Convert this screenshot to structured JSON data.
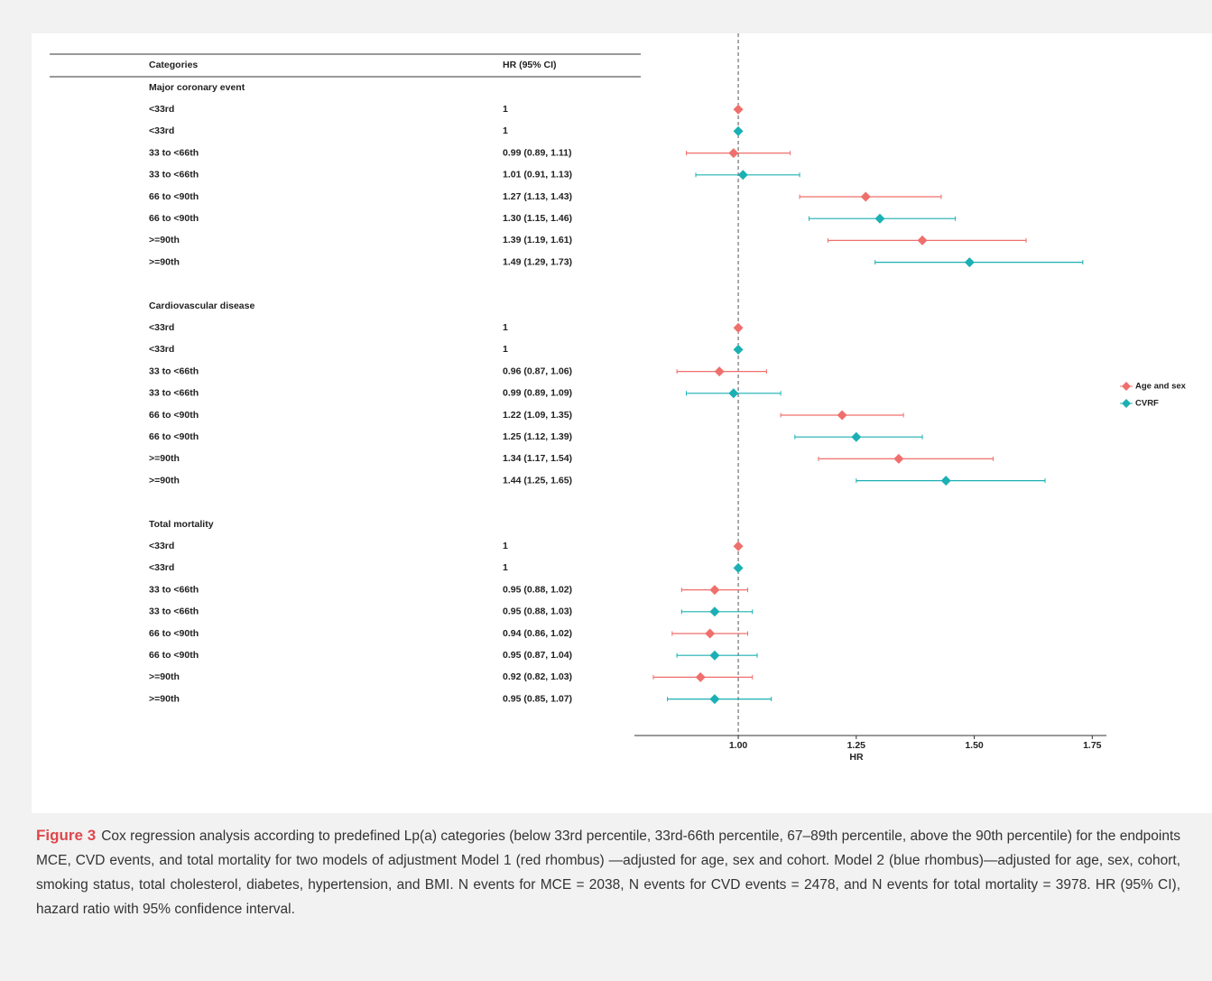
{
  "chart_data": {
    "type": "forest",
    "column_headers": [
      "Categories",
      "HR (95% CI)"
    ],
    "xlabel": "HR",
    "xlim": [
      0.78,
      1.78
    ],
    "xticks": [
      {
        "value": 1,
        "label": "1.00"
      },
      {
        "value": 1.25,
        "label": "1.25"
      },
      {
        "value": 1.5,
        "label": "1.50"
      },
      {
        "value": 1.75,
        "label": "1.75"
      }
    ],
    "reference_line": 1,
    "legend": "right",
    "series": [
      {
        "name": "Age and sex",
        "color": "#ef6f6c"
      },
      {
        "name": "CVRF",
        "color": "#1bb0b3"
      }
    ],
    "groups": [
      {
        "name": "Major coronary event",
        "categories": [
          "<33rd",
          "33 to <66th",
          "66 to <90th",
          ">=90th"
        ],
        "series": [
          {
            "values": [
              1,
              0.99,
              1.27,
              1.39
            ],
            "low": [
              null,
              0.89,
              1.13,
              1.19
            ],
            "high": [
              null,
              1.11,
              1.43,
              1.61
            ],
            "value_labels": [
              "1",
              "0.99 (0.89, 1.11)",
              "1.27 (1.13, 1.43)",
              "1.39 (1.19, 1.61)"
            ]
          },
          {
            "values": [
              1,
              1.01,
              1.3,
              1.49
            ],
            "low": [
              null,
              0.91,
              1.15,
              1.29
            ],
            "high": [
              null,
              1.13,
              1.46,
              1.73
            ],
            "value_labels": [
              "1",
              "1.01 (0.91, 1.13)",
              "1.30 (1.15, 1.46)",
              "1.49 (1.29, 1.73)"
            ]
          }
        ]
      },
      {
        "name": "Cardiovascular disease",
        "categories": [
          "<33rd",
          "33 to <66th",
          "66 to <90th",
          ">=90th"
        ],
        "series": [
          {
            "values": [
              1,
              0.96,
              1.22,
              1.34
            ],
            "low": [
              null,
              0.87,
              1.09,
              1.17
            ],
            "high": [
              null,
              1.06,
              1.35,
              1.54
            ],
            "value_labels": [
              "1",
              "0.96 (0.87, 1.06)",
              "1.22 (1.09, 1.35)",
              "1.34 (1.17, 1.54)"
            ]
          },
          {
            "values": [
              1,
              0.99,
              1.25,
              1.44
            ],
            "low": [
              null,
              0.89,
              1.12,
              1.25
            ],
            "high": [
              null,
              1.09,
              1.39,
              1.65
            ],
            "value_labels": [
              "1",
              "0.99 (0.89, 1.09)",
              "1.25 (1.12, 1.39)",
              "1.44 (1.25, 1.65)"
            ]
          }
        ]
      },
      {
        "name": "Total mortality",
        "categories": [
          "<33rd",
          "33 to <66th",
          "66 to <90th",
          ">=90th"
        ],
        "series": [
          {
            "values": [
              1,
              0.95,
              0.94,
              0.92
            ],
            "low": [
              null,
              0.88,
              0.86,
              0.82
            ],
            "high": [
              null,
              1.02,
              1.02,
              1.03
            ],
            "value_labels": [
              "1",
              "0.95 (0.88, 1.02)",
              "0.94 (0.86, 1.02)",
              "0.92 (0.82, 1.03)"
            ]
          },
          {
            "values": [
              1,
              0.95,
              0.95,
              0.95
            ],
            "low": [
              null,
              0.88,
              0.87,
              0.85
            ],
            "high": [
              null,
              1.03,
              1.04,
              1.07
            ],
            "value_labels": [
              "1",
              "0.95 (0.88, 1.03)",
              "0.95 (0.87, 1.04)",
              "0.95 (0.85, 1.07)"
            ]
          }
        ]
      }
    ]
  },
  "caption": {
    "label": "Figure 3",
    "text": "Cox regression analysis according to predefined Lp(a) categories (below 33rd percentile, 33rd-66th percentile, 67–89th percentile, above the 90th percentile) for the endpoints MCE, CVD events, and total mortality for two models of adjustment Model 1 (red rhombus) —adjusted for age, sex and cohort. Model 2 (blue rhombus)—adjusted for age, sex, cohort, smoking status, total cholesterol, diabetes, hypertension, and BMI. N events for MCE = 2038, N events for CVD events = 2478, and N events for total mortality = 3978. HR (95% CI), hazard ratio with 95% confidence interval."
  }
}
